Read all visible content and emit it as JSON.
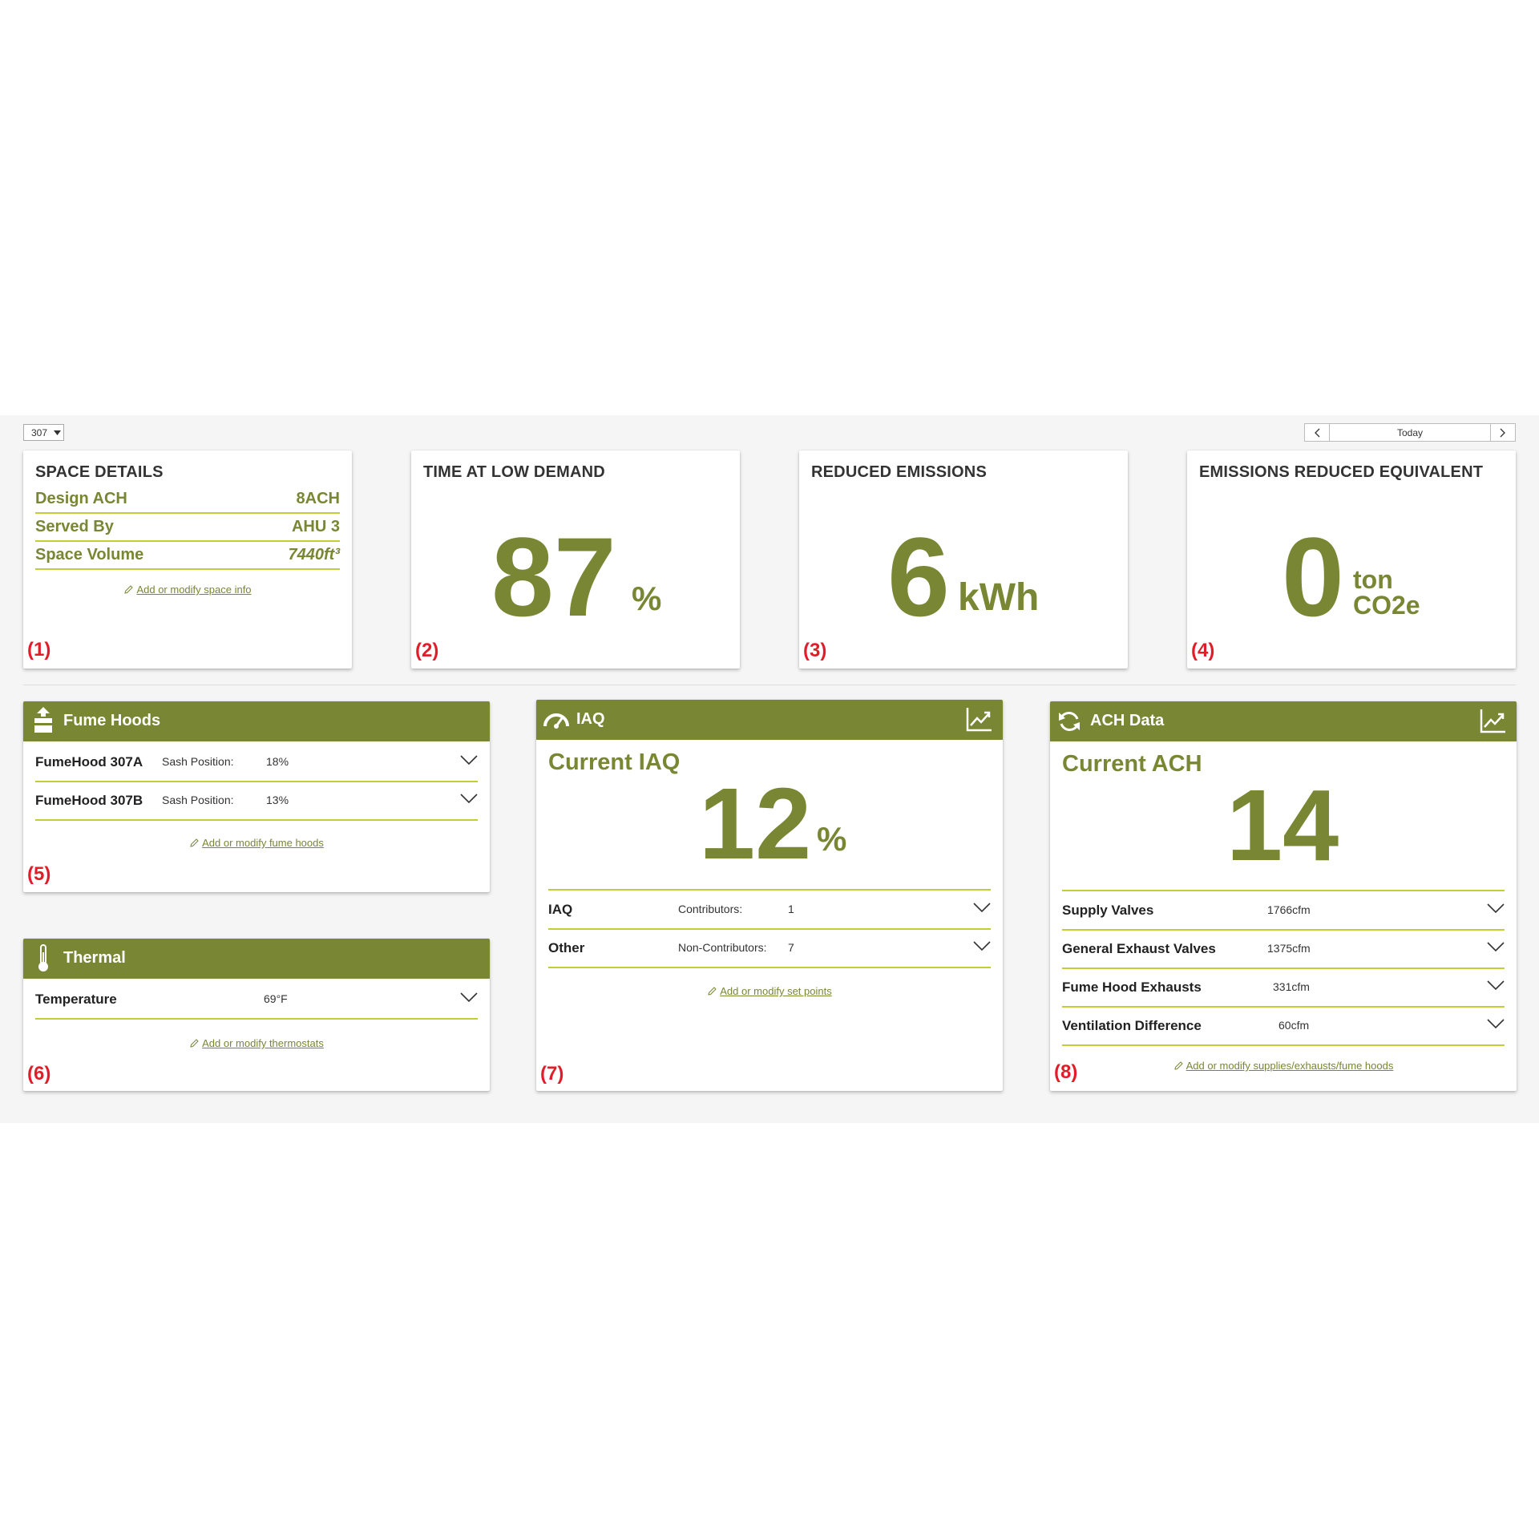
{
  "toolbar": {
    "space_select": "307",
    "date_label": "Today"
  },
  "space_details": {
    "title": "SPACE DETAILS",
    "rows": [
      {
        "label": "Design ACH",
        "value": "8ACH"
      },
      {
        "label": "Served By",
        "value": "AHU 3"
      },
      {
        "label": "Space Volume",
        "value": "7440ft³"
      }
    ],
    "link": "Add or modify space info",
    "marker": "(1)"
  },
  "low_demand": {
    "title": "TIME AT LOW DEMAND",
    "value": "87",
    "unit": "%",
    "marker": "(2)"
  },
  "reduced_emissions": {
    "title": "REDUCED EMISSIONS",
    "value": "6",
    "unit": "kWh",
    "marker": "(3)"
  },
  "emissions_equiv": {
    "title": "EMISSIONS REDUCED EQUIVALENT",
    "value": "0",
    "unit_line1": "ton",
    "unit_line2": "CO2e",
    "marker": "(4)"
  },
  "fume_hoods": {
    "title": "Fume Hoods",
    "rows": [
      {
        "name": "FumeHood 307A",
        "label": "Sash Position:",
        "value": "18%"
      },
      {
        "name": "FumeHood 307B",
        "label": "Sash Position:",
        "value": "13%"
      }
    ],
    "link": "Add or modify fume hoods",
    "marker": "(5)",
    "icon": "fume-hood-icon"
  },
  "thermal": {
    "title": "Thermal",
    "rows": [
      {
        "name": "Temperature",
        "value": "69°F"
      }
    ],
    "link": "Add or modify thermostats",
    "marker": "(6)",
    "icon": "thermometer-icon"
  },
  "iaq": {
    "title": "IAQ",
    "current_label": "Current IAQ",
    "value": "12",
    "unit": "%",
    "rows": [
      {
        "name": "IAQ",
        "label": "Contributors:",
        "value": "1"
      },
      {
        "name": "Other",
        "label": "Non-Contributors:",
        "value": "7"
      }
    ],
    "link": "Add or modify set points",
    "marker": "(7)",
    "icon": "gauge-icon"
  },
  "ach": {
    "title": "ACH Data",
    "current_label": "Current ACH",
    "value": "14",
    "rows": [
      {
        "name": "Supply Valves",
        "value": "1766cfm"
      },
      {
        "name": "General Exhaust Valves",
        "value": "1375cfm"
      },
      {
        "name": "Fume Hood Exhausts",
        "value": "331cfm"
      },
      {
        "name": "Ventilation Difference",
        "value": "60cfm"
      }
    ],
    "link": "Add or modify supplies/exhausts/fume hoods",
    "marker": "(8)",
    "icon": "refresh-icon"
  },
  "colors": {
    "accent": "#798633",
    "rule": "#c4cc3a",
    "marker": "#e21d2a",
    "background": "#f5f5f5"
  }
}
